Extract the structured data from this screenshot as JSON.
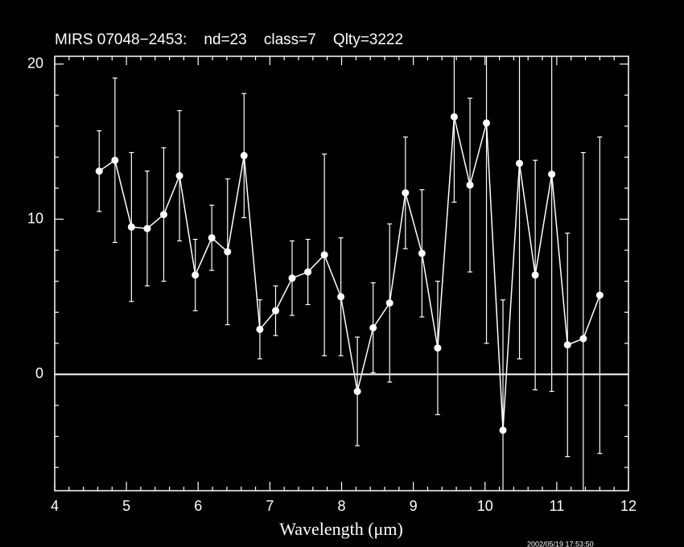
{
  "chart_data": {
    "type": "scatter",
    "title": "MIRS 07048−2453:    nd=23    class=7    Qlty=3222",
    "x_label": "Wavelength (μm)",
    "footer": "2002/05/19 17:53:50",
    "color": "#ffffff",
    "background": "#000000",
    "connect": true,
    "xlim": [
      4,
      12
    ],
    "ylim": [
      -7.5,
      20.5
    ],
    "xticks": [
      4,
      5,
      6,
      7,
      8,
      9,
      10,
      11,
      12
    ],
    "yticks": [
      0,
      10,
      20
    ],
    "xticks_minor": [
      4.2,
      4.4,
      4.6,
      4.8,
      5.2,
      5.4,
      5.6,
      5.8,
      6.2,
      6.4,
      6.6,
      6.8,
      7.2,
      7.4,
      7.6,
      7.8,
      8.2,
      8.4,
      8.6,
      8.8,
      9.2,
      9.4,
      9.6,
      9.8,
      10.2,
      10.4,
      10.6,
      10.8,
      11.2,
      11.4,
      11.6,
      11.8
    ],
    "yticks_minor": [
      -6,
      -4,
      -2,
      2,
      4,
      6,
      8,
      12,
      14,
      16,
      18
    ],
    "hline": 0,
    "x": [
      4.62,
      4.84,
      5.07,
      5.29,
      5.52,
      5.74,
      5.96,
      6.19,
      6.41,
      6.64,
      6.86,
      7.08,
      7.31,
      7.53,
      7.76,
      7.99,
      8.22,
      8.44,
      8.67,
      8.89,
      9.12,
      9.34,
      9.57,
      9.79,
      10.02,
      10.25,
      10.48,
      10.7,
      10.93,
      11.15,
      11.37,
      11.6
    ],
    "values": [
      13.1,
      13.8,
      9.5,
      9.4,
      10.3,
      12.8,
      6.4,
      8.8,
      7.9,
      14.1,
      2.9,
      4.1,
      6.2,
      6.6,
      7.7,
      5.0,
      -1.1,
      3.0,
      4.6,
      11.7,
      7.8,
      1.7,
      16.6,
      12.2,
      16.2,
      -3.6,
      13.6,
      6.4,
      12.9,
      1.9,
      2.3,
      5.1
    ],
    "errors": [
      2.6,
      5.3,
      4.8,
      3.7,
      4.3,
      4.2,
      2.3,
      2.1,
      4.7,
      4.0,
      1.9,
      1.6,
      2.4,
      2.1,
      6.5,
      3.8,
      3.5,
      2.9,
      5.1,
      3.6,
      4.1,
      4.3,
      5.5,
      5.6,
      14.2,
      8.4,
      12.6,
      7.4,
      14.0,
      7.2,
      12.0,
      10.2
    ]
  }
}
